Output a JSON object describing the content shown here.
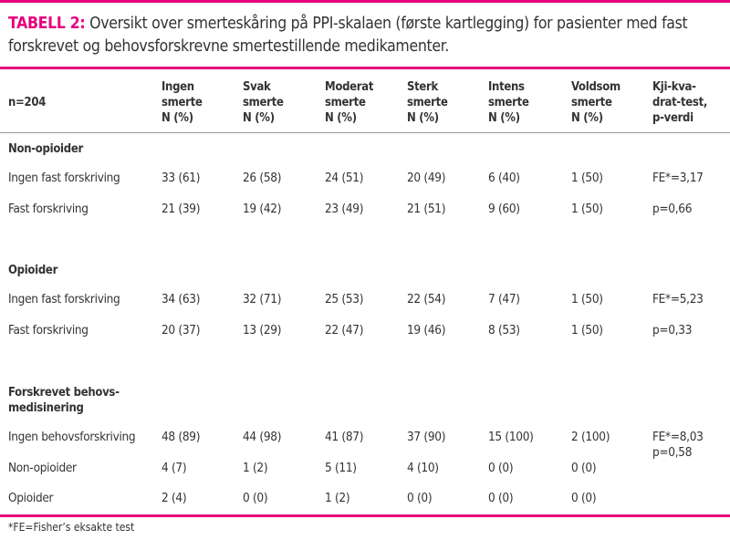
{
  "caption": {
    "label": "TABELL 2:",
    "text": " Oversikt over smerteskåring på PPI-skalaen (første kartlegging) for pasienter med fast forskrevet og behovsforskrevne smertestillende medikamenter."
  },
  "header": {
    "n": "n=204",
    "columns": [
      [
        "Ingen",
        "smerte",
        "N (%)"
      ],
      [
        "Svak",
        "smerte",
        "N (%)"
      ],
      [
        "Moderat",
        "smerte",
        "N (%)"
      ],
      [
        "Sterk",
        "smerte",
        "N (%)"
      ],
      [
        "Intens",
        "smerte",
        "N (%)"
      ],
      [
        "Voldsom",
        "smerte",
        "N (%)"
      ],
      [
        "Kji-kva-",
        "drat-test,",
        "p-verdi"
      ]
    ]
  },
  "sections": [
    {
      "title": [
        "Non-opioider"
      ],
      "rows": [
        {
          "label": "Ingen fast forskriving",
          "values": [
            "33 (61)",
            "26 (58)",
            "24 (51)",
            "20 (49)",
            "6 (40)",
            "1 (50)"
          ],
          "test": "FE*=3,17"
        },
        {
          "label": "Fast forskriving",
          "values": [
            "21 (39)",
            "19 (42)",
            "23 (49)",
            "21 (51)",
            "9 (60)",
            "1 (50)"
          ],
          "test": "p=0,66"
        }
      ]
    },
    {
      "title": [
        "Opioider"
      ],
      "rows": [
        {
          "label": "Ingen fast forskriving",
          "values": [
            "34 (63)",
            "32 (71)",
            "25 (53)",
            "22 (54)",
            "7 (47)",
            "1 (50)"
          ],
          "test": "FE*=5,23"
        },
        {
          "label": "Fast forskriving",
          "values": [
            "20 (37)",
            "13 (29)",
            "22 (47)",
            "19 (46)",
            "8 (53)",
            "1 (50)"
          ],
          "test": "p=0,33"
        }
      ]
    },
    {
      "title": [
        "Forskrevet behovs-",
        "medisinering"
      ],
      "rows": [
        {
          "label": "Ingen behovsforskriving",
          "values": [
            "48 (89)",
            "44 (98)",
            "41 (87)",
            "37 (90)",
            "15 (100)",
            "2 (100)"
          ],
          "test": "FE*=8,03\np=0,58"
        },
        {
          "label": "Non-opioider",
          "values": [
            "4 (7)",
            "1 (2)",
            "5 (11)",
            "4 (10)",
            "0 (0)",
            "0 (0)"
          ],
          "test": ""
        },
        {
          "label": "Opioider",
          "values": [
            "2 (4)",
            "0 (0)",
            "1 (2)",
            "0 (0)",
            "0 (0)",
            "0 (0)"
          ],
          "test": ""
        }
      ]
    }
  ],
  "footnote": "*FE=Fisher’s eksakte test",
  "colors": {
    "accent": "#e6007e",
    "divider": "#999999"
  }
}
